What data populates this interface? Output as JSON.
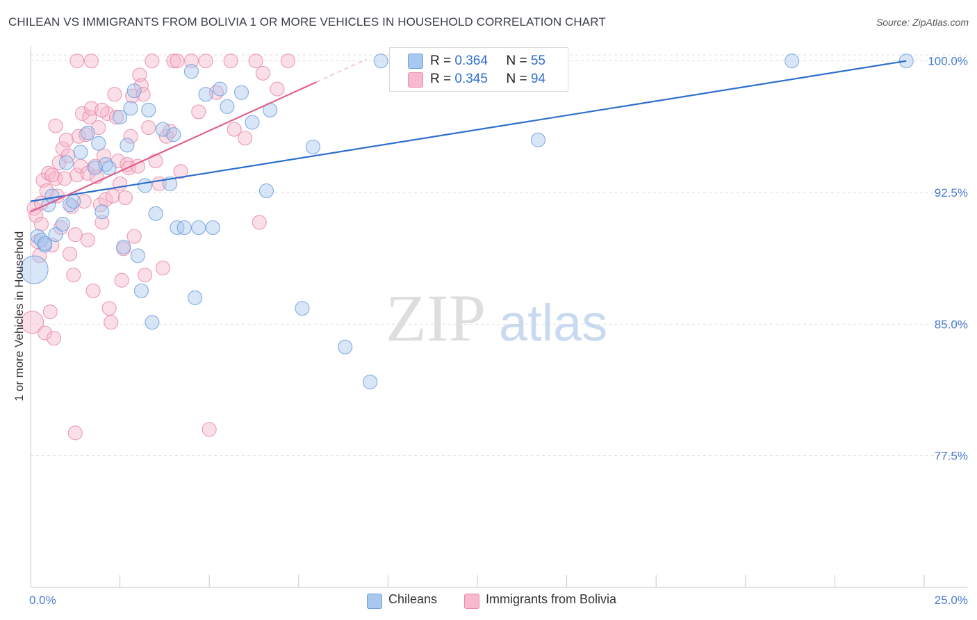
{
  "title": "CHILEAN VS IMMIGRANTS FROM BOLIVIA 1 OR MORE VEHICLES IN HOUSEHOLD CORRELATION CHART",
  "source": "Source: ZipAtlas.com",
  "watermark": {
    "zip": "ZIP",
    "atlas": "atlas"
  },
  "legend": {
    "rows": [
      {
        "r_label": "R = ",
        "r_value": "0.364",
        "n_label": "N = ",
        "n_value": "55"
      },
      {
        "r_label": "R = ",
        "r_value": "0.345",
        "n_label": "N = ",
        "n_value": "94"
      }
    ]
  },
  "bottom_legend": {
    "series1": "Chileans",
    "series2": "Immigrants from Bolivia"
  },
  "colors": {
    "blue_fill": "#a9c8f0",
    "blue_stroke": "#6f9fdc",
    "blue_line": "#2c6fcd",
    "pink_fill": "#f6b9cd",
    "pink_stroke": "#e889a8",
    "pink_line": "#e0608a",
    "tick_text": "#4a7bd0",
    "grid": "#dddddd"
  },
  "chart_data": {
    "type": "scatter",
    "title": "CHILEAN VS IMMIGRANTS FROM BOLIVIA 1 OR MORE VEHICLES IN HOUSEHOLD CORRELATION CHART",
    "xlabel": "",
    "ylabel": "1 or more Vehicles in Household",
    "xlim": [
      0,
      25
    ],
    "ylim": [
      70.0,
      100.7
    ],
    "x_tick_labels": [
      {
        "value": 0,
        "label": "0.0%"
      },
      {
        "value": 25,
        "label": "25.0%"
      }
    ],
    "y_tick_labels": [
      {
        "value": 100.0,
        "label": "100.0%"
      },
      {
        "value": 92.5,
        "label": "92.5%"
      },
      {
        "value": 85.0,
        "label": "85.0%"
      },
      {
        "value": 77.5,
        "label": "77.5%"
      }
    ],
    "series": [
      {
        "name": "Chileans",
        "r": 0.364,
        "n": 55,
        "trend": {
          "x0": 0,
          "y0": 92.0,
          "x1": 24.5,
          "y1": 100.0
        },
        "points": [
          [
            0.1,
            88.1,
            20
          ],
          [
            0.2,
            90.0,
            10
          ],
          [
            0.3,
            89.8,
            10
          ],
          [
            0.4,
            89.5,
            10
          ],
          [
            0.5,
            91.8,
            10
          ],
          [
            0.6,
            92.3,
            10
          ],
          [
            0.7,
            90.1,
            10
          ],
          [
            0.9,
            90.7,
            10
          ],
          [
            1.0,
            94.2,
            10
          ],
          [
            1.1,
            91.8,
            10
          ],
          [
            1.2,
            92.0,
            10
          ],
          [
            1.4,
            94.8,
            10
          ],
          [
            1.6,
            95.9,
            10
          ],
          [
            1.8,
            93.9,
            10
          ],
          [
            1.9,
            95.3,
            10
          ],
          [
            2.0,
            91.4,
            10
          ],
          [
            2.1,
            94.1,
            10
          ],
          [
            2.2,
            93.9,
            10
          ],
          [
            2.5,
            96.8,
            10
          ],
          [
            2.6,
            89.4,
            10
          ],
          [
            2.7,
            95.2,
            10
          ],
          [
            2.8,
            97.3,
            10
          ],
          [
            2.9,
            98.3,
            10
          ],
          [
            3.0,
            88.9,
            10
          ],
          [
            3.1,
            86.9,
            10
          ],
          [
            3.2,
            92.9,
            10
          ],
          [
            3.3,
            97.2,
            10
          ],
          [
            3.4,
            85.1,
            10
          ],
          [
            3.5,
            91.3,
            10
          ],
          [
            3.7,
            96.1,
            10
          ],
          [
            3.9,
            93.0,
            10
          ],
          [
            4.0,
            95.8,
            10
          ],
          [
            4.1,
            90.5,
            10
          ],
          [
            4.3,
            90.5,
            10
          ],
          [
            4.5,
            99.4,
            10
          ],
          [
            4.6,
            86.5,
            10
          ],
          [
            4.7,
            90.5,
            10
          ],
          [
            4.9,
            98.1,
            10
          ],
          [
            5.1,
            90.5,
            10
          ],
          [
            5.3,
            98.4,
            10
          ],
          [
            5.5,
            97.4,
            10
          ],
          [
            5.9,
            98.2,
            10
          ],
          [
            6.2,
            96.5,
            10
          ],
          [
            6.6,
            92.6,
            10
          ],
          [
            6.7,
            97.2,
            10
          ],
          [
            7.6,
            85.9,
            10
          ],
          [
            7.9,
            95.1,
            10
          ],
          [
            8.8,
            83.7,
            10
          ],
          [
            9.5,
            81.7,
            10
          ],
          [
            9.8,
            100.0,
            10
          ],
          [
            11.7,
            100.0,
            10
          ],
          [
            14.2,
            95.5,
            10
          ],
          [
            21.3,
            100.0,
            10
          ],
          [
            24.5,
            100.0,
            10
          ],
          [
            0.4,
            89.6,
            10
          ]
        ]
      },
      {
        "name": "Immigrants from Bolivia",
        "r": 0.345,
        "n": 94,
        "trend": {
          "x0": 0,
          "y0": 91.4,
          "x1": 8.0,
          "y1": 98.8
        },
        "trend_dashed": {
          "x0": 8.0,
          "y0": 98.8,
          "x1": 9.4,
          "y1": 100.1
        },
        "points": [
          [
            0.05,
            85.1,
            16
          ],
          [
            0.1,
            91.6,
            10
          ],
          [
            0.15,
            91.2,
            10
          ],
          [
            0.2,
            89.7,
            10
          ],
          [
            0.25,
            88.9,
            10
          ],
          [
            0.3,
            90.7,
            10
          ],
          [
            0.35,
            93.2,
            10
          ],
          [
            0.4,
            84.5,
            10
          ],
          [
            0.45,
            92.6,
            10
          ],
          [
            0.5,
            93.6,
            10
          ],
          [
            0.55,
            85.7,
            10
          ],
          [
            0.6,
            89.5,
            10
          ],
          [
            0.65,
            84.2,
            10
          ],
          [
            0.7,
            93.3,
            10
          ],
          [
            0.75,
            92.3,
            10
          ],
          [
            0.7,
            96.3,
            10
          ],
          [
            0.8,
            94.2,
            10
          ],
          [
            0.85,
            90.5,
            10
          ],
          [
            0.9,
            95.0,
            10
          ],
          [
            0.95,
            93.3,
            10
          ],
          [
            1.0,
            95.5,
            10
          ],
          [
            1.05,
            94.6,
            10
          ],
          [
            1.1,
            89.0,
            10
          ],
          [
            1.15,
            91.7,
            10
          ],
          [
            1.2,
            87.8,
            10
          ],
          [
            1.25,
            90.1,
            10
          ],
          [
            1.3,
            93.5,
            10
          ],
          [
            1.35,
            95.7,
            10
          ],
          [
            1.4,
            94.0,
            10
          ],
          [
            1.45,
            97.0,
            10
          ],
          [
            1.5,
            92.0,
            10
          ],
          [
            1.55,
            95.8,
            10
          ],
          [
            1.6,
            93.6,
            10
          ],
          [
            1.65,
            96.8,
            10
          ],
          [
            1.7,
            97.3,
            10
          ],
          [
            1.75,
            86.9,
            10
          ],
          [
            1.8,
            94.0,
            10
          ],
          [
            1.85,
            93.4,
            10
          ],
          [
            1.9,
            96.2,
            10
          ],
          [
            1.95,
            91.8,
            10
          ],
          [
            2.0,
            90.8,
            10
          ],
          [
            2.05,
            94.6,
            10
          ],
          [
            2.1,
            92.1,
            10
          ],
          [
            2.15,
            97.0,
            10
          ],
          [
            2.2,
            85.9,
            10
          ],
          [
            2.25,
            85.1,
            10
          ],
          [
            2.3,
            92.3,
            10
          ],
          [
            2.35,
            98.1,
            10
          ],
          [
            2.4,
            96.8,
            10
          ],
          [
            2.45,
            94.3,
            10
          ],
          [
            2.5,
            93.0,
            10
          ],
          [
            2.55,
            87.5,
            10
          ],
          [
            2.6,
            89.3,
            10
          ],
          [
            2.65,
            92.2,
            10
          ],
          [
            2.7,
            94.1,
            10
          ],
          [
            2.75,
            93.9,
            10
          ],
          [
            2.8,
            95.7,
            10
          ],
          [
            2.85,
            98.0,
            10
          ],
          [
            2.9,
            90.0,
            10
          ],
          [
            3.0,
            94.0,
            10
          ],
          [
            3.05,
            99.2,
            10
          ],
          [
            3.1,
            98.6,
            10
          ],
          [
            3.15,
            98.1,
            10
          ],
          [
            3.2,
            87.8,
            10
          ],
          [
            3.3,
            96.2,
            10
          ],
          [
            3.4,
            100.0,
            10
          ],
          [
            3.5,
            94.3,
            10
          ],
          [
            3.6,
            93.0,
            10
          ],
          [
            3.7,
            88.2,
            10
          ],
          [
            3.8,
            95.7,
            10
          ],
          [
            3.9,
            96.0,
            10
          ],
          [
            4.0,
            100.0,
            10
          ],
          [
            4.1,
            100.0,
            10
          ],
          [
            4.2,
            93.7,
            10
          ],
          [
            4.5,
            100.0,
            10
          ],
          [
            4.7,
            97.1,
            10
          ],
          [
            4.9,
            100.0,
            10
          ],
          [
            5.0,
            79.0,
            10
          ],
          [
            5.2,
            98.2,
            10
          ],
          [
            5.6,
            100.0,
            10
          ],
          [
            5.7,
            96.1,
            10
          ],
          [
            6.0,
            95.6,
            10
          ],
          [
            6.3,
            100.0,
            10
          ],
          [
            6.4,
            90.8,
            10
          ],
          [
            6.5,
            99.3,
            10
          ],
          [
            6.9,
            98.4,
            10
          ],
          [
            7.2,
            100.0,
            10
          ],
          [
            1.3,
            100.0,
            10
          ],
          [
            1.7,
            100.0,
            10
          ],
          [
            1.25,
            78.8,
            10
          ],
          [
            0.6,
            93.5,
            10
          ],
          [
            1.6,
            89.8,
            10
          ],
          [
            0.3,
            91.9,
            10
          ],
          [
            2.0,
            97.2,
            10
          ]
        ]
      }
    ]
  }
}
